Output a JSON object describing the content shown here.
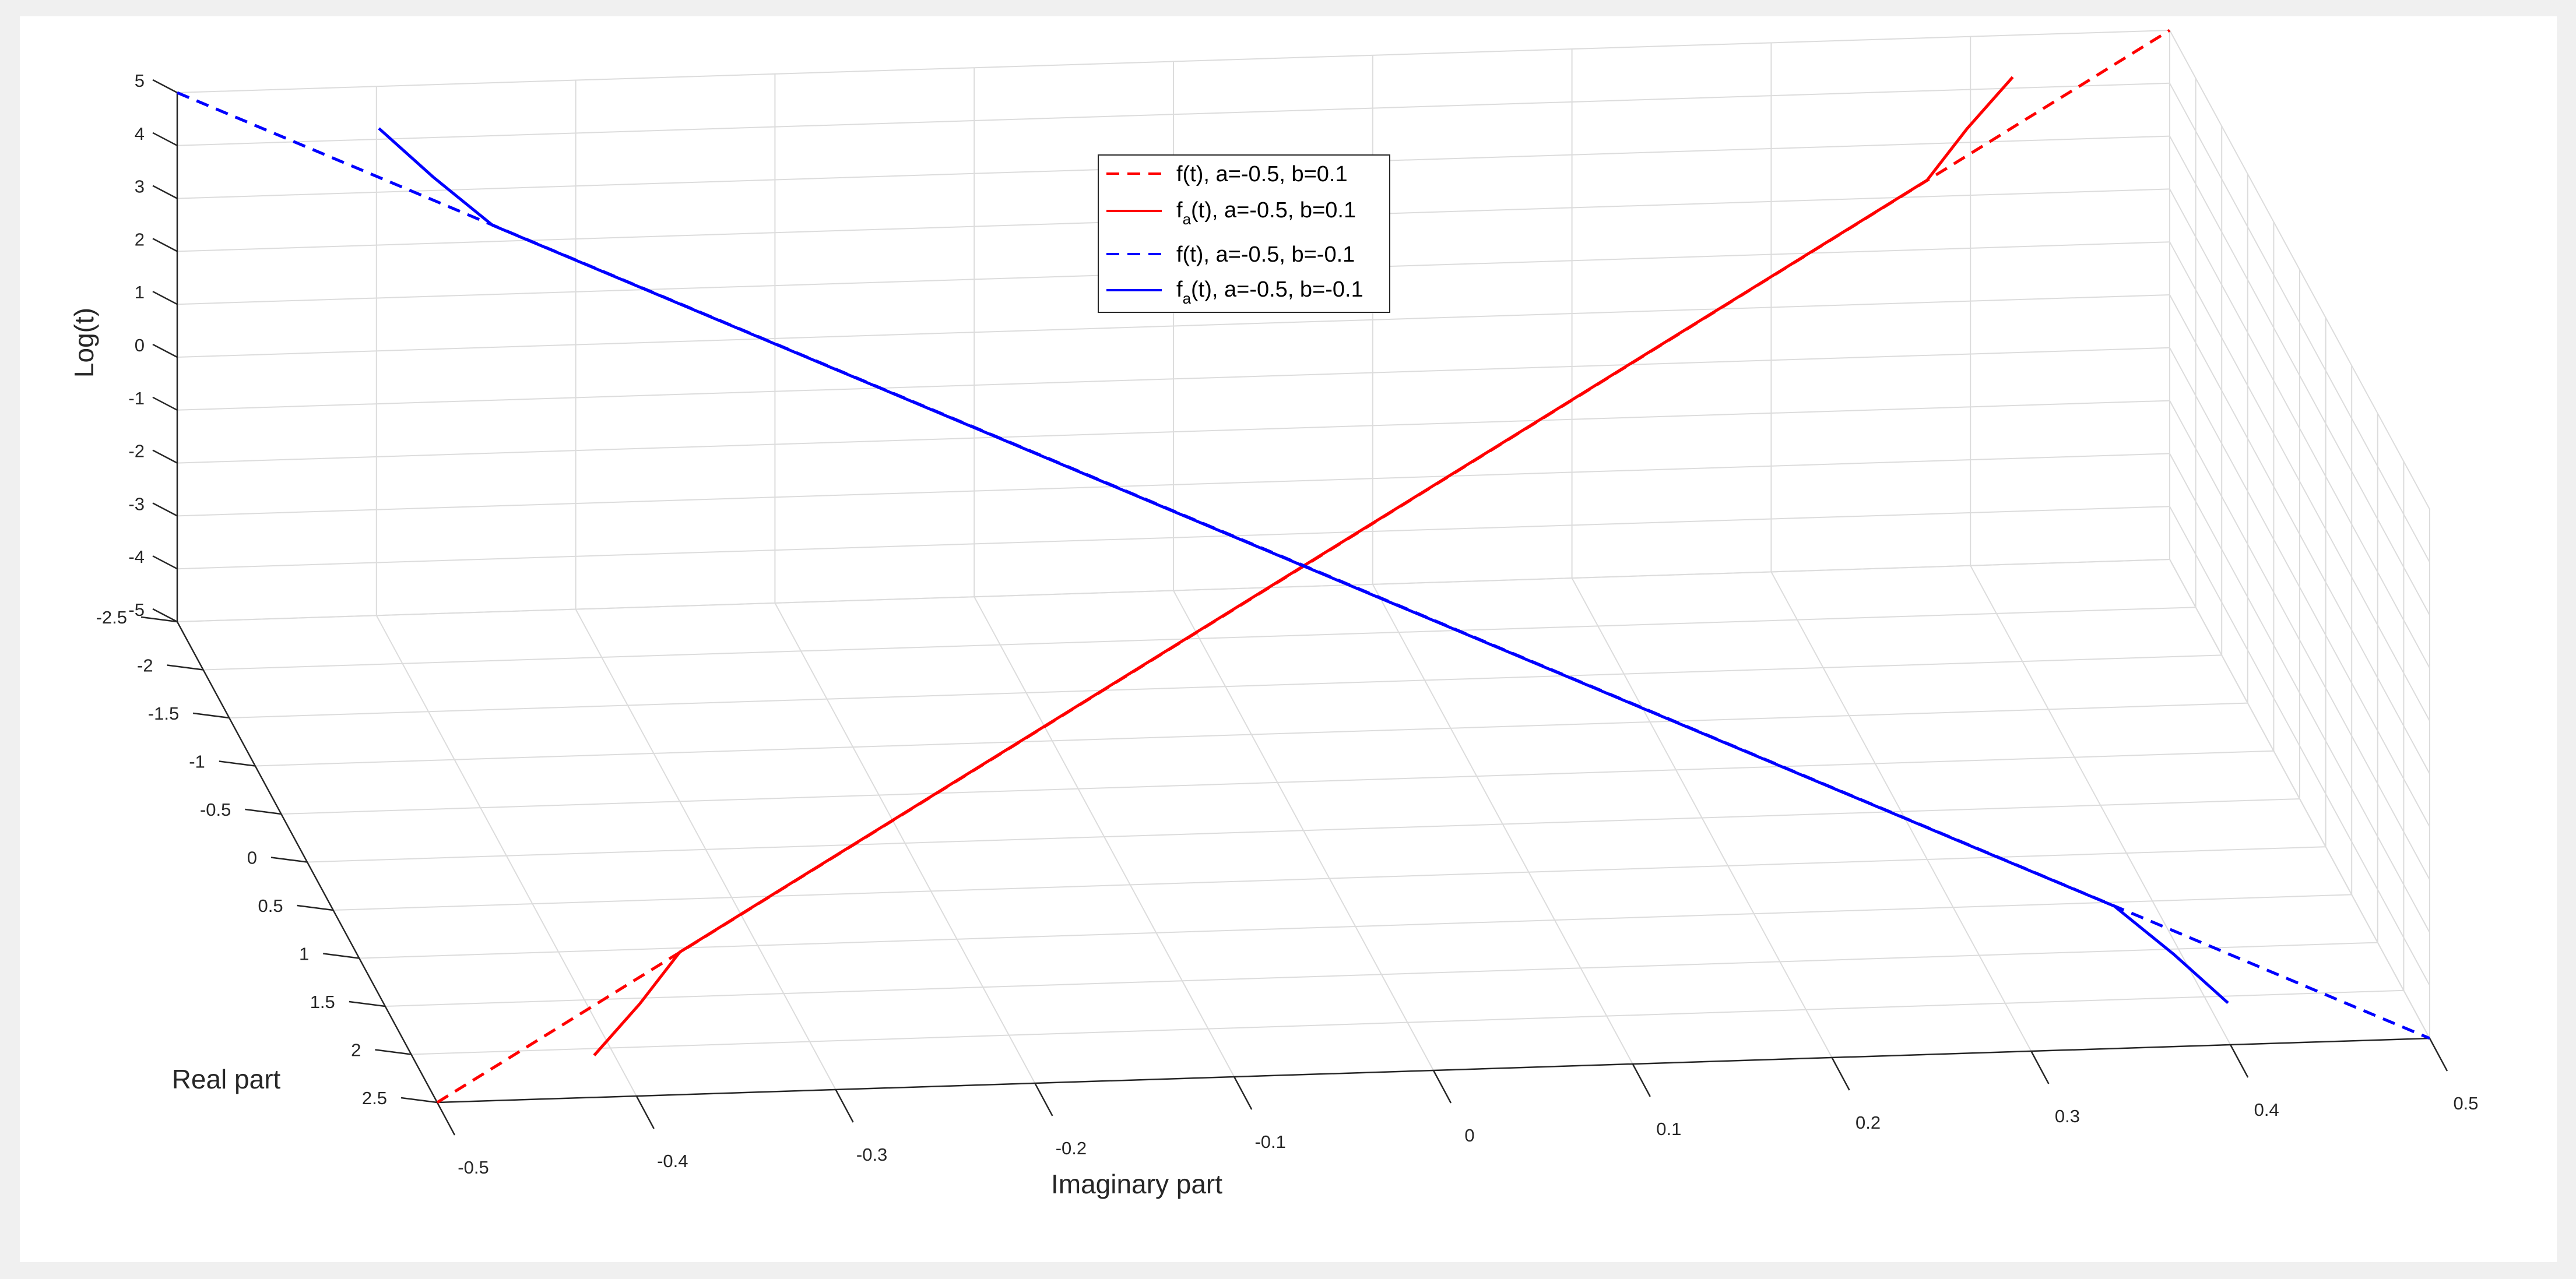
{
  "chart_data": {
    "type": "line",
    "view": "3d",
    "xlabel": "Imaginary part",
    "ylabel": "Real part",
    "zlabel": "Log(t)",
    "xlim": [
      -0.5,
      0.5
    ],
    "ylim": [
      -2.5,
      2.5
    ],
    "zlim": [
      -5,
      5
    ],
    "xticks": [
      "-0.5",
      "-0.4",
      "-0.3",
      "-0.2",
      "-0.1",
      "0",
      "0.1",
      "0.2",
      "0.3",
      "0.4",
      "0.5"
    ],
    "yticks": [
      "-2.5",
      "-2",
      "-1.5",
      "-1",
      "-0.5",
      "0",
      "0.5",
      "1",
      "1.5",
      "2",
      "2.5"
    ],
    "zticks": [
      "-5",
      "-4",
      "-3",
      "-2",
      "-1",
      "0",
      "1",
      "2",
      "3",
      "4",
      "5"
    ],
    "grid": true,
    "legend_position": "top-center",
    "series": [
      {
        "name": "f(t), a=-0.5, b=0.1",
        "color": "#ff0000",
        "dash": "dashed",
        "points": [
          {
            "x": -0.5,
            "y": 2.5,
            "z": -5
          },
          {
            "x": 0.5,
            "y": -2.5,
            "z": 5
          }
        ]
      },
      {
        "name": "f",
        "name_sub": "a",
        "name_rest": "(t), a=-0.5, b=0.1",
        "color": "#ff0000",
        "dash": "solid",
        "points": [
          {
            "x": -0.41,
            "y": 2.07,
            "z": -5
          },
          {
            "x": -0.385,
            "y": 1.99,
            "z": -4.2
          },
          {
            "x": -0.36,
            "y": 1.8,
            "z": -3.6
          },
          {
            "x": -0.3,
            "y": 1.5,
            "z": -3.0
          },
          {
            "x": 0,
            "y": 0,
            "z": 0
          },
          {
            "x": 0.3,
            "y": -1.5,
            "z": 3.0
          },
          {
            "x": 0.36,
            "y": -1.8,
            "z": 3.6
          },
          {
            "x": 0.385,
            "y": -1.99,
            "z": 4.2
          },
          {
            "x": 0.41,
            "y": -2.07,
            "z": 5
          }
        ]
      },
      {
        "name": "f(t), a=-0.5, b=-0.1",
        "color": "#0000ff",
        "dash": "dashed",
        "points": [
          {
            "x": -0.5,
            "y": -2.5,
            "z": 5
          },
          {
            "x": 0.5,
            "y": 2.5,
            "z": -5
          }
        ]
      },
      {
        "name": "f",
        "name_sub": "a",
        "name_rest": "(t), a=-0.5, b=-0.1",
        "color": "#0000ff",
        "dash": "solid",
        "points": [
          {
            "x": -0.41,
            "y": -2.07,
            "z": 5
          },
          {
            "x": -0.385,
            "y": -1.99,
            "z": 4.2
          },
          {
            "x": -0.36,
            "y": -1.8,
            "z": 3.6
          },
          {
            "x": -0.3,
            "y": -1.5,
            "z": 3.0
          },
          {
            "x": 0,
            "y": 0,
            "z": 0
          },
          {
            "x": 0.3,
            "y": 1.5,
            "z": -3.0
          },
          {
            "x": 0.36,
            "y": 1.8,
            "z": -3.6
          },
          {
            "x": 0.385,
            "y": 1.99,
            "z": -4.2
          },
          {
            "x": 0.41,
            "y": 2.07,
            "z": -5
          }
        ]
      }
    ]
  }
}
